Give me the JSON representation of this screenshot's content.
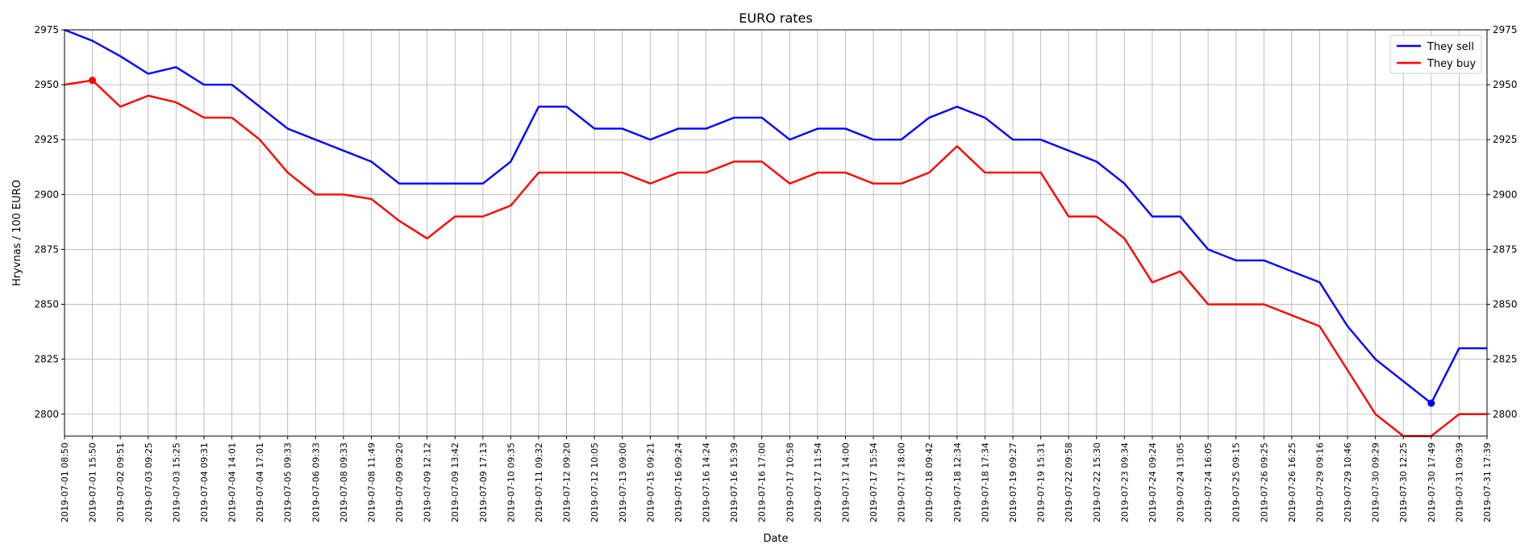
{
  "chart_data": {
    "type": "line",
    "title": "EURO rates",
    "xlabel": "Date",
    "ylabel": "Hryvnas / 100 EURO",
    "ylim": [
      2790,
      2975
    ],
    "yticks": [
      2800,
      2825,
      2850,
      2875,
      2900,
      2925,
      2950,
      2975
    ],
    "grid": true,
    "legend_position": "top-right",
    "x": [
      "2019-07-01 08:50",
      "2019-07-01 15:50",
      "2019-07-02 09:51",
      "2019-07-03 09:25",
      "2019-07-03 15:25",
      "2019-07-04 09:31",
      "2019-07-04 14:01",
      "2019-07-04 17:01",
      "2019-07-05 09:33",
      "2019-07-06 09:33",
      "2019-07-08 09:33",
      "2019-07-08 11:49",
      "2019-07-09 09:20",
      "2019-07-09 12:12",
      "2019-07-09 13:42",
      "2019-07-09 17:13",
      "2019-07-10 09:35",
      "2019-07-11 09:32",
      "2019-07-12 09:20",
      "2019-07-12 10:05",
      "2019-07-13 09:00",
      "2019-07-15 09:21",
      "2019-07-16 09:24",
      "2019-07-16 14:24",
      "2019-07-16 15:39",
      "2019-07-16 17:00",
      "2019-07-17 10:58",
      "2019-07-17 11:54",
      "2019-07-17 14:00",
      "2019-07-17 15:54",
      "2019-07-17 18:00",
      "2019-07-18 09:42",
      "2019-07-18 12:34",
      "2019-07-18 17:34",
      "2019-07-19 09:27",
      "2019-07-19 15:31",
      "2019-07-22 09:58",
      "2019-07-22 15:30",
      "2019-07-23 09:34",
      "2019-07-24 09:24",
      "2019-07-24 13:05",
      "2019-07-24 16:05",
      "2019-07-25 09:15",
      "2019-07-26 09:25",
      "2019-07-26 16:25",
      "2019-07-29 09:16",
      "2019-07-29 10:46",
      "2019-07-30 09:29",
      "2019-07-30 12:25",
      "2019-07-30 17:49",
      "2019-07-31 09:39",
      "2019-07-31 17:39"
    ],
    "series": [
      {
        "name": "They sell",
        "color": "#0000ff",
        "values": [
          2975,
          2970,
          2963,
          2955,
          2958,
          2950,
          2950,
          2940,
          2930,
          2925,
          2920,
          2915,
          2905,
          2905,
          2905,
          2905,
          2915,
          2940,
          2940,
          2930,
          2930,
          2925,
          2930,
          2930,
          2935,
          2935,
          2925,
          2930,
          2930,
          2925,
          2925,
          2935,
          2940,
          2935,
          2925,
          2925,
          2920,
          2915,
          2905,
          2890,
          2890,
          2875,
          2870,
          2870,
          2865,
          2860,
          2840,
          2825,
          2815,
          2805,
          2830,
          2830
        ],
        "marker_index": 49
      },
      {
        "name": "They buy",
        "color": "#ff0000",
        "values": [
          2950,
          2952,
          2940,
          2945,
          2942,
          2935,
          2935,
          2925,
          2910,
          2900,
          2900,
          2898,
          2888,
          2880,
          2890,
          2890,
          2895,
          2910,
          2910,
          2910,
          2910,
          2905,
          2910,
          2910,
          2915,
          2915,
          2905,
          2910,
          2910,
          2905,
          2905,
          2910,
          2922,
          2910,
          2910,
          2910,
          2890,
          2890,
          2880,
          2860,
          2865,
          2850,
          2850,
          2850,
          2845,
          2840,
          2820,
          2800,
          2790,
          2790,
          2800,
          2800
        ],
        "marker_index": 1
      }
    ]
  }
}
